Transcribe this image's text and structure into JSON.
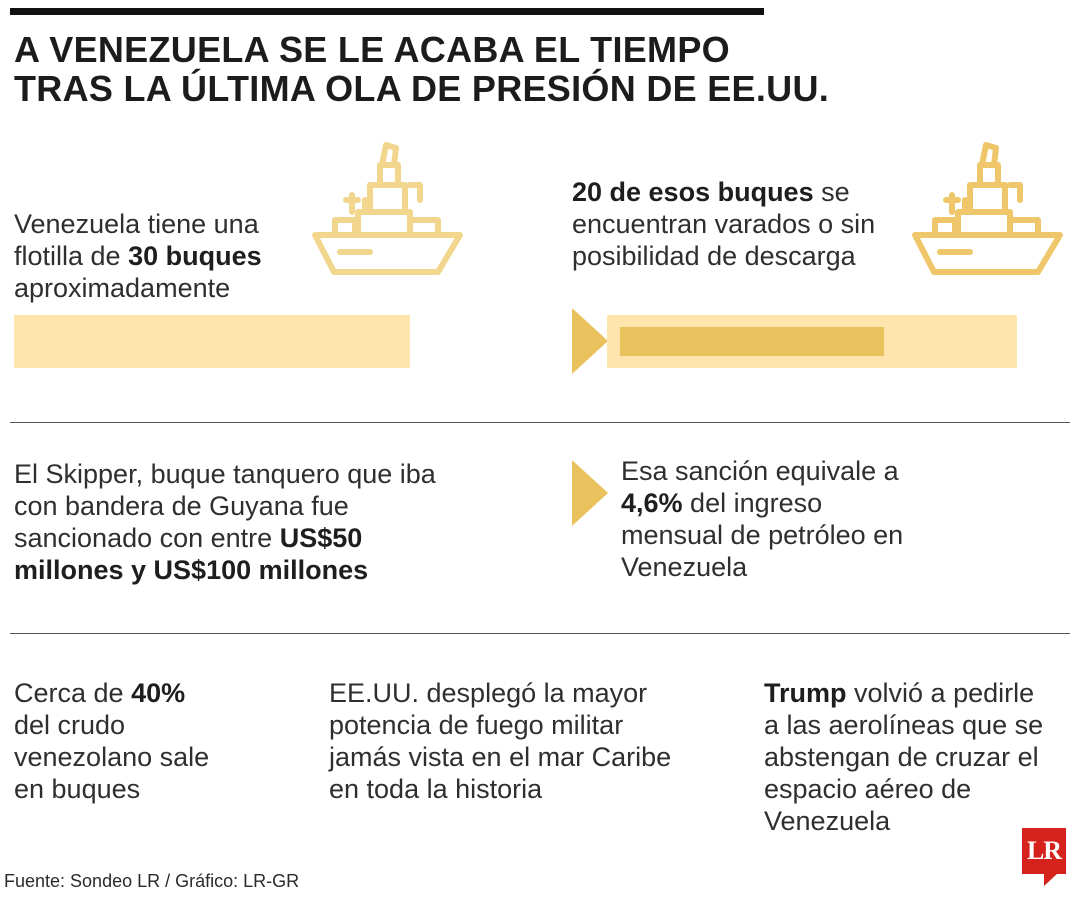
{
  "title": {
    "line1": "A VENEZUELA SE LE ACABA EL TIEMPO",
    "line2": "TRAS LA ÚLTIMA OLA DE PRESIÓN DE EE.UU."
  },
  "fact1": {
    "pre": "Venezuela tiene una",
    "mid_pre": "flotilla de ",
    "bold": "30 buques",
    "post": "aproximadamente",
    "bar_fraction": 1.0
  },
  "fact2": {
    "bold": "20 de esos buques",
    "rest1": " se",
    "rest2": "encuentran varados o sin",
    "rest3": "posibilidad de descarga",
    "bar_fraction": 0.667
  },
  "fact3": {
    "line1": "El Skipper, buque tanquero que iba",
    "line2": "con bandera de Guyana fue",
    "line3_pre": "sancionado con entre ",
    "line3_bold": "US$50",
    "line4_bold": "millones y US$100 millones"
  },
  "fact4": {
    "line1": "Esa sanción equivale a",
    "bold": "4,6%",
    "line2_post": " del ingreso",
    "line3": "mensual de petróleo en",
    "line4": "Venezuela"
  },
  "fact5": {
    "pre": "Cerca de ",
    "bold": "40%",
    "line2": "del crudo",
    "line3": "venezolano sale",
    "line4": "en buques"
  },
  "fact6": {
    "line1": "EE.UU. desplegó la mayor",
    "line2": "potencia de fuego militar",
    "line3": "jamás vista en el mar Caribe",
    "line4": "en toda la historia"
  },
  "fact7": {
    "bold": "Trump",
    "line1_post": " volvió a pedirle",
    "line2": "a las aerolíneas que se",
    "line3": "abstengan de cruzar el",
    "line4": "espacio aéreo de",
    "line5": "Venezuela"
  },
  "source": "Fuente: Sondeo LR / Gráfico: LR-GR",
  "logo": "LR",
  "colors": {
    "accent": "#e9c15d",
    "accent_light": "#fde5ad",
    "ship_icon": "#f2d68e",
    "logo": "#d6221c"
  },
  "icons": [
    "ship-icon",
    "arrow-right-icon"
  ]
}
